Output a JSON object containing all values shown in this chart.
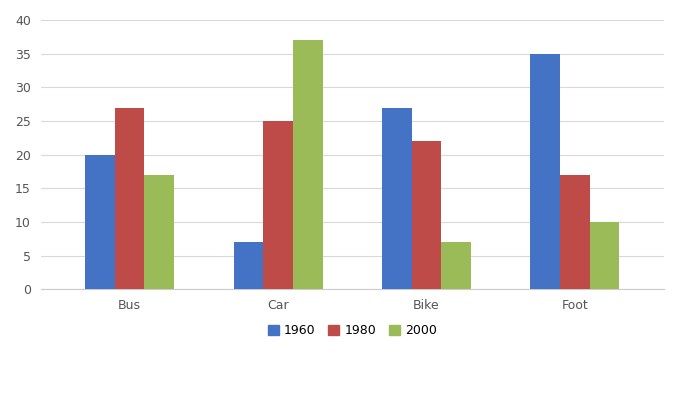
{
  "categories": [
    "Bus",
    "Car",
    "Bike",
    "Foot"
  ],
  "series": {
    "1960": [
      20,
      7,
      27,
      35
    ],
    "1980": [
      27,
      25,
      22,
      17
    ],
    "2000": [
      17,
      37,
      7,
      10
    ]
  },
  "colors": {
    "1960": "#4472C4",
    "1980": "#BE4B48",
    "2000": "#9BBB59"
  },
  "ylim": [
    0,
    40
  ],
  "yticks": [
    0,
    5,
    10,
    15,
    20,
    25,
    30,
    35,
    40
  ],
  "legend_labels": [
    "1960",
    "1980",
    "2000"
  ],
  "background_color": "#FFFFFF",
  "plot_bg_color": "#FFFFFF",
  "bar_width": 0.2,
  "grid_color": "#D9D9D9",
  "figsize": [
    6.79,
    3.97
  ],
  "dpi": 100
}
